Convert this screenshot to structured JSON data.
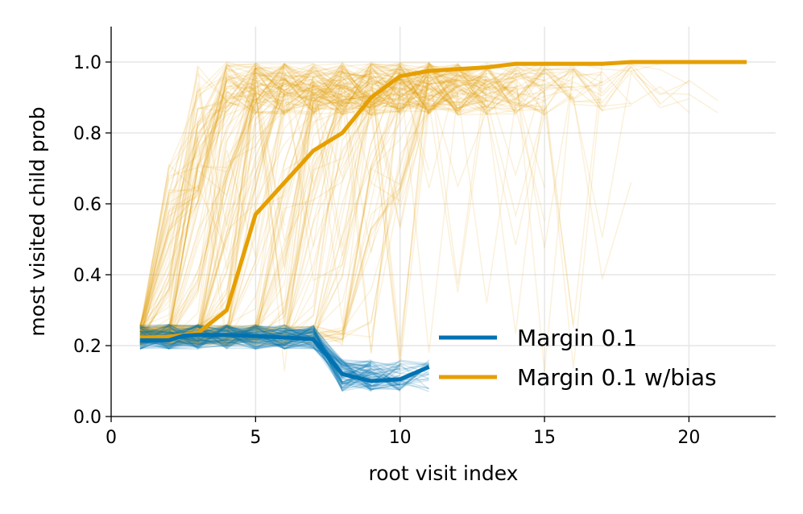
{
  "chart_data": {
    "type": "line",
    "title": "",
    "xlabel": "root visit index",
    "ylabel": "most visited child prob",
    "xlim": [
      0,
      23
    ],
    "ylim": [
      0,
      1.1
    ],
    "xticks": [
      0,
      5,
      10,
      15,
      20
    ],
    "yticks": [
      0.0,
      0.2,
      0.4,
      0.6,
      0.8,
      1.0
    ],
    "xtick_labels": [
      "0",
      "5",
      "10",
      "15",
      "20"
    ],
    "ytick_labels": [
      "0.0",
      "0.2",
      "0.4",
      "0.6",
      "0.8",
      "1.0"
    ],
    "grid": true,
    "legend_position": "lower-right",
    "series": [
      {
        "name": "Margin 0.1",
        "color": "#0072B2",
        "x": [
          1,
          2,
          2.5,
          3,
          4,
          5,
          6,
          7,
          8,
          9,
          10,
          11
        ],
        "y": [
          0.215,
          0.215,
          0.228,
          0.23,
          0.23,
          0.227,
          0.223,
          0.218,
          0.12,
          0.1,
          0.105,
          0.14
        ]
      },
      {
        "name": "Margin 0.1 w/bias",
        "color": "#E69F00",
        "x": [
          1,
          2,
          3,
          4,
          5,
          6,
          7,
          8,
          9,
          10,
          11,
          12,
          13,
          14,
          15,
          16,
          17,
          18,
          19,
          20,
          21,
          22
        ],
        "y": [
          0.222,
          0.225,
          0.235,
          0.3,
          0.57,
          0.66,
          0.75,
          0.8,
          0.9,
          0.96,
          0.975,
          0.98,
          0.985,
          0.995,
          0.995,
          0.995,
          0.995,
          1.0,
          1.0,
          1.0,
          1.0,
          1.0
        ]
      }
    ],
    "background_traces": {
      "Margin 0.1 w/bias": {
        "color": "#E69F00",
        "count": 180,
        "opacity": 0.14
      },
      "Margin 0.1": {
        "color": "#0072B2",
        "count": 90,
        "opacity": 0.18
      }
    }
  }
}
